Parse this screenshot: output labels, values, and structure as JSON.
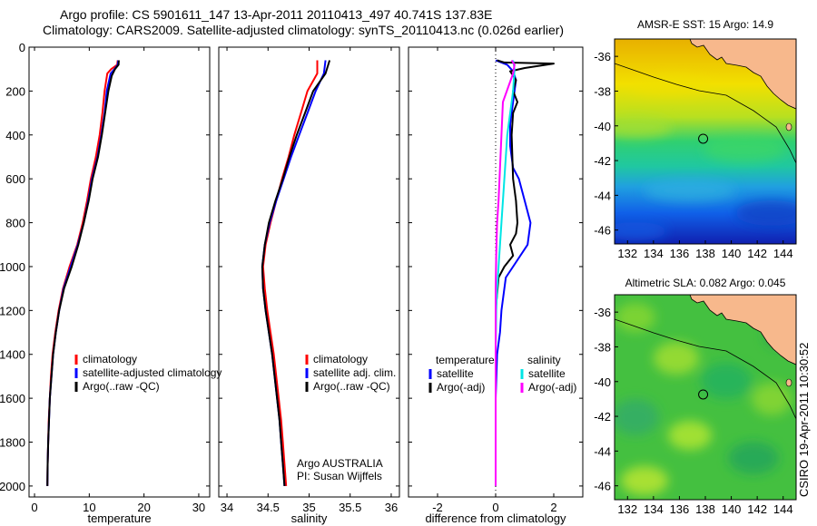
{
  "title_line1": "Argo profile: CS 5901611_147 13-Apr-2011 20110413_497 40.741S 137.83E",
  "title_line2": "Climatology: CARS2009. Satellite-adjusted climatology: synTS_20110413.nc (0.026d earlier)",
  "colors": {
    "clim": "#ff0000",
    "sat": "#0000ff",
    "argo": "#000000",
    "sal_sat": "#00e5e5",
    "sal_argo": "#ff00ff",
    "land": "#f7b88c"
  },
  "depth_ticks": [
    "0",
    "200",
    "400",
    "600",
    "800",
    "1000",
    "1200",
    "1400",
    "1600",
    "1800",
    "2000"
  ],
  "side_label": "CSIRO 19-Apr-2011 10:30:52",
  "chart_data": [
    {
      "type": "line",
      "xlabel": "temperature",
      "ylabel": "",
      "xlim": [
        -1,
        32
      ],
      "ylim": [
        2050,
        0
      ],
      "xticks": [
        "0",
        "10",
        "20",
        "30"
      ],
      "legend": [
        "climatology",
        "satellite-adjusted climatology",
        "Argo(..raw -QC)"
      ],
      "series": [
        {
          "name": "climatology",
          "color": "#ff0000",
          "points": [
            [
              15.2,
              60
            ],
            [
              15.1,
              80
            ],
            [
              14.0,
              100
            ],
            [
              13.3,
              120
            ],
            [
              12.8,
              200
            ],
            [
              12.4,
              300
            ],
            [
              11.9,
              400
            ],
            [
              11.2,
              500
            ],
            [
              10.3,
              600
            ],
            [
              9.6,
              700
            ],
            [
              8.8,
              800
            ],
            [
              7.8,
              900
            ],
            [
              6.4,
              1000
            ],
            [
              5.2,
              1100
            ],
            [
              4.4,
              1200
            ],
            [
              3.8,
              1300
            ],
            [
              3.3,
              1400
            ],
            [
              3.0,
              1500
            ],
            [
              2.8,
              1600
            ],
            [
              2.6,
              1700
            ],
            [
              2.5,
              1800
            ],
            [
              2.4,
              1900
            ],
            [
              2.35,
              2000
            ]
          ]
        },
        {
          "name": "satellite-adjusted climatology",
          "color": "#0000ff",
          "points": [
            [
              15.3,
              60
            ],
            [
              15.2,
              80
            ],
            [
              14.6,
              100
            ],
            [
              13.9,
              120
            ],
            [
              13.2,
              200
            ],
            [
              12.8,
              300
            ],
            [
              12.2,
              400
            ],
            [
              11.5,
              500
            ],
            [
              10.5,
              600
            ],
            [
              9.8,
              700
            ],
            [
              9.0,
              800
            ],
            [
              7.9,
              900
            ],
            [
              6.6,
              1000
            ],
            [
              5.3,
              1100
            ],
            [
              4.5,
              1200
            ],
            [
              3.9,
              1300
            ],
            [
              3.4,
              1400
            ],
            [
              3.1,
              1500
            ],
            [
              2.8,
              1600
            ],
            [
              2.65,
              1700
            ],
            [
              2.5,
              1800
            ],
            [
              2.4,
              1900
            ],
            [
              2.35,
              2000
            ]
          ]
        },
        {
          "name": "Argo(..raw -QC)",
          "color": "#000000",
          "points": [
            [
              15.4,
              60
            ],
            [
              15.35,
              80
            ],
            [
              14.7,
              100
            ],
            [
              14.1,
              130
            ],
            [
              13.5,
              200
            ],
            [
              12.9,
              300
            ],
            [
              12.3,
              400
            ],
            [
              11.6,
              500
            ],
            [
              10.6,
              600
            ],
            [
              9.9,
              700
            ],
            [
              9.0,
              800
            ],
            [
              8.0,
              900
            ],
            [
              6.8,
              1000
            ],
            [
              5.4,
              1100
            ],
            [
              4.5,
              1200
            ],
            [
              3.9,
              1300
            ],
            [
              3.4,
              1400
            ],
            [
              3.1,
              1500
            ],
            [
              2.8,
              1600
            ],
            [
              2.65,
              1700
            ],
            [
              2.5,
              1800
            ],
            [
              2.4,
              1900
            ],
            [
              2.35,
              2000
            ]
          ]
        }
      ]
    },
    {
      "type": "line",
      "xlabel": "salinity",
      "ylabel": "",
      "xlim": [
        33.9,
        36.1
      ],
      "ylim": [
        2050,
        0
      ],
      "xticks": [
        "34",
        "34.5",
        "35",
        "35.5",
        "36"
      ],
      "legend": [
        "climatology",
        "satellite adj. clim.",
        "Argo(..raw -QC)"
      ],
      "annotation": [
        "Argo AUSTRALIA",
        "PI: Susan Wijffels"
      ],
      "series": [
        {
          "name": "climatology",
          "color": "#ff0000",
          "points": [
            [
              35.1,
              60
            ],
            [
              35.1,
              120
            ],
            [
              34.98,
              200
            ],
            [
              34.9,
              300
            ],
            [
              34.82,
              400
            ],
            [
              34.75,
              500
            ],
            [
              34.67,
              600
            ],
            [
              34.6,
              700
            ],
            [
              34.53,
              800
            ],
            [
              34.47,
              900
            ],
            [
              34.44,
              1000
            ],
            [
              34.46,
              1100
            ],
            [
              34.49,
              1200
            ],
            [
              34.53,
              1300
            ],
            [
              34.57,
              1400
            ],
            [
              34.6,
              1500
            ],
            [
              34.63,
              1600
            ],
            [
              34.66,
              1700
            ],
            [
              34.68,
              1800
            ],
            [
              34.7,
              1900
            ],
            [
              34.72,
              2000
            ]
          ]
        },
        {
          "name": "satellite adj. clim.",
          "color": "#0000ff",
          "points": [
            [
              35.2,
              60
            ],
            [
              35.18,
              120
            ],
            [
              35.08,
              200
            ],
            [
              34.98,
              300
            ],
            [
              34.88,
              400
            ],
            [
              34.78,
              500
            ],
            [
              34.69,
              600
            ],
            [
              34.6,
              700
            ],
            [
              34.52,
              800
            ],
            [
              34.46,
              900
            ],
            [
              34.43,
              1000
            ],
            [
              34.44,
              1100
            ],
            [
              34.47,
              1200
            ],
            [
              34.51,
              1300
            ],
            [
              34.55,
              1400
            ],
            [
              34.58,
              1500
            ],
            [
              34.61,
              1600
            ],
            [
              34.64,
              1700
            ],
            [
              34.66,
              1800
            ],
            [
              34.68,
              1900
            ],
            [
              34.7,
              2000
            ]
          ]
        },
        {
          "name": "Argo(..raw -QC)",
          "color": "#000000",
          "points": [
            [
              35.25,
              60
            ],
            [
              35.2,
              120
            ],
            [
              35.05,
              200
            ],
            [
              34.95,
              300
            ],
            [
              34.85,
              400
            ],
            [
              34.76,
              500
            ],
            [
              34.68,
              600
            ],
            [
              34.59,
              700
            ],
            [
              34.51,
              800
            ],
            [
              34.46,
              900
            ],
            [
              34.43,
              1000
            ],
            [
              34.44,
              1100
            ],
            [
              34.47,
              1200
            ],
            [
              34.51,
              1300
            ],
            [
              34.55,
              1400
            ],
            [
              34.58,
              1500
            ],
            [
              34.61,
              1600
            ],
            [
              34.64,
              1700
            ],
            [
              34.66,
              1800
            ],
            [
              34.68,
              1900
            ],
            [
              34.7,
              2000
            ]
          ]
        }
      ]
    },
    {
      "type": "line",
      "xlabel": "difference from climatology",
      "ylabel": "",
      "xlim": [
        -3,
        3
      ],
      "ylim": [
        2050,
        0
      ],
      "xticks": [
        "-2",
        "0",
        "2"
      ],
      "legend_temperature": [
        "temperature",
        "satellite",
        "Argo(-adj)"
      ],
      "legend_salinity": [
        "salinity",
        "satellite",
        "Argo(-adj)"
      ],
      "series": [
        {
          "name": "satellite",
          "group": "temperature",
          "color": "#0000ff",
          "points": [
            [
              0.0,
              60
            ],
            [
              0.4,
              80
            ],
            [
              0.6,
              110
            ],
            [
              0.7,
              150
            ],
            [
              0.6,
              250
            ],
            [
              0.5,
              350
            ],
            [
              0.5,
              450
            ],
            [
              0.6,
              550
            ],
            [
              0.8,
              600
            ],
            [
              1.0,
              700
            ],
            [
              1.2,
              800
            ],
            [
              1.1,
              900
            ],
            [
              0.6,
              1000
            ],
            [
              0.35,
              1050
            ],
            [
              0.3,
              1100
            ],
            [
              0.2,
              1200
            ],
            [
              0.15,
              1300
            ],
            [
              0.05,
              1400
            ],
            [
              0.0,
              1600
            ],
            [
              0.0,
              2000
            ]
          ]
        },
        {
          "name": "Argo(-adj)",
          "group": "temperature",
          "color": "#000000",
          "points": [
            [
              0.05,
              60
            ],
            [
              0.3,
              70
            ],
            [
              2.0,
              75
            ],
            [
              1.0,
              95
            ],
            [
              0.5,
              110
            ],
            [
              0.7,
              150
            ],
            [
              0.6,
              200
            ],
            [
              0.75,
              250
            ],
            [
              0.6,
              300
            ],
            [
              0.55,
              400
            ],
            [
              0.6,
              600
            ],
            [
              0.7,
              700
            ],
            [
              0.75,
              800
            ],
            [
              0.7,
              850
            ],
            [
              0.5,
              900
            ],
            [
              0.6,
              950
            ],
            [
              0.3,
              1000
            ],
            [
              0.1,
              1050
            ],
            [
              0.0,
              1200
            ],
            [
              0.0,
              2000
            ]
          ]
        },
        {
          "name": "satellite",
          "group": "salinity",
          "color": "#00e5e5",
          "points": [
            [
              0.6,
              60
            ],
            [
              0.65,
              100
            ],
            [
              0.6,
              200
            ],
            [
              0.5,
              300
            ],
            [
              0.4,
              400
            ],
            [
              0.35,
              500
            ],
            [
              0.3,
              600
            ],
            [
              0.25,
              700
            ],
            [
              0.2,
              800
            ],
            [
              0.15,
              900
            ],
            [
              0.1,
              1000
            ],
            [
              0.05,
              1100
            ],
            [
              0.02,
              1200
            ],
            [
              0.0,
              1400
            ],
            [
              0.0,
              2000
            ]
          ]
        },
        {
          "name": "Argo(-adj)",
          "group": "salinity",
          "color": "#ff00ff",
          "points": [
            [
              0.55,
              60
            ],
            [
              0.65,
              80
            ],
            [
              0.6,
              120
            ],
            [
              0.25,
              250
            ],
            [
              0.2,
              400
            ],
            [
              0.15,
              550
            ],
            [
              0.1,
              700
            ],
            [
              0.05,
              800
            ],
            [
              0.02,
              950
            ],
            [
              0.0,
              1100
            ],
            [
              0.0,
              2000
            ]
          ]
        }
      ]
    },
    {
      "type": "heatmap",
      "title": "AMSR-E SST: 15 Argo: 14.9",
      "xticks": [
        "132",
        "134",
        "136",
        "138",
        "140",
        "142",
        "144"
      ],
      "yticks": [
        "-36",
        "-38",
        "-40",
        "-42",
        "-44",
        "-46"
      ],
      "xlim": [
        131,
        145
      ],
      "ylim": [
        -46.8,
        -35
      ],
      "marker": [
        137.83,
        -40.741
      ]
    },
    {
      "type": "heatmap",
      "title": "Altimetric SLA: 0.082 Argo: 0.045",
      "xticks": [
        "132",
        "134",
        "136",
        "138",
        "140",
        "142",
        "144"
      ],
      "yticks": [
        "-36",
        "-38",
        "-40",
        "-42",
        "-44",
        "-46"
      ],
      "xlim": [
        131,
        145
      ],
      "ylim": [
        -46.8,
        -35
      ],
      "marker": [
        137.83,
        -40.741
      ]
    }
  ]
}
